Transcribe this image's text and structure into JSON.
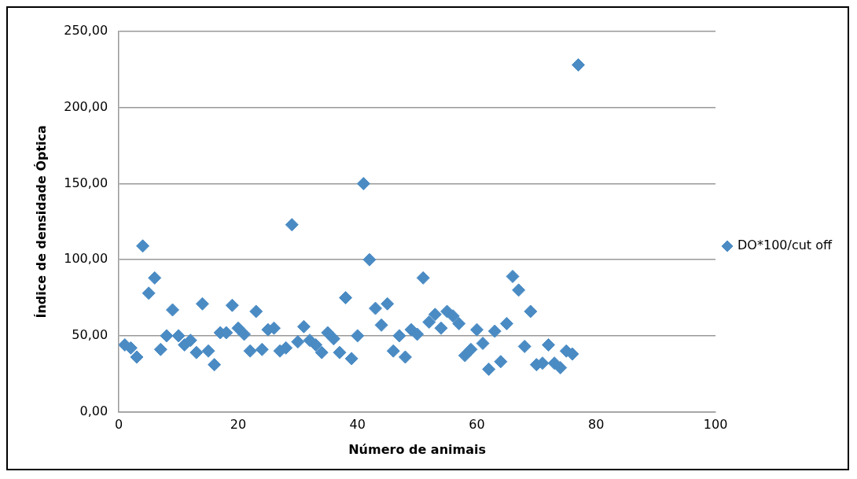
{
  "chart_data": {
    "type": "scatter",
    "xlabel": "Número de animais",
    "ylabel": "Índice de densidade Óptica",
    "x": [
      1,
      2,
      3,
      4,
      5,
      6,
      7,
      8,
      9,
      10,
      11,
      12,
      13,
      14,
      15,
      16,
      17,
      18,
      19,
      20,
      21,
      22,
      23,
      24,
      25,
      26,
      27,
      28,
      29,
      30,
      31,
      32,
      33,
      34,
      35,
      36,
      37,
      38,
      39,
      40,
      41,
      42,
      43,
      44,
      45,
      46,
      47,
      48,
      49,
      50,
      51,
      52,
      53,
      54,
      55,
      56,
      57,
      58,
      59,
      60,
      61,
      62,
      63,
      64,
      65,
      66,
      67,
      68,
      69,
      70,
      71,
      72,
      73,
      74,
      75,
      76,
      77
    ],
    "series": [
      {
        "name": "DO*100/cut off",
        "color": "#4a8bc4",
        "values": [
          44,
          42,
          36,
          109,
          78,
          88,
          41,
          50,
          67,
          50,
          44,
          47,
          39,
          71,
          40,
          31,
          52,
          52,
          70,
          55,
          51,
          40,
          66,
          41,
          54,
          55,
          40,
          42,
          123,
          46,
          56,
          47,
          44,
          39,
          52,
          48,
          39,
          75,
          35,
          50,
          150,
          100,
          68,
          57,
          71,
          40,
          50,
          36,
          54,
          51,
          88,
          59,
          64,
          55,
          66,
          63,
          58,
          37,
          41,
          54,
          45,
          28,
          53,
          33,
          58,
          89,
          80,
          43,
          66,
          31,
          32,
          44,
          32,
          29,
          40,
          38,
          228
        ]
      }
    ],
    "xlim": [
      0,
      100
    ],
    "xticks": [
      0,
      20,
      40,
      60,
      80,
      100
    ],
    "ylim": [
      0,
      250
    ],
    "yticks": [
      {
        "value": 0,
        "label": "0,00"
      },
      {
        "value": 50,
        "label": "50,00"
      },
      {
        "value": 100,
        "label": "100,00"
      },
      {
        "value": 150,
        "label": "150,00"
      },
      {
        "value": 200,
        "label": "200,00"
      },
      {
        "value": 250,
        "label": "250,00"
      }
    ],
    "grid": "y",
    "legend": "right",
    "marker": "diamond"
  }
}
